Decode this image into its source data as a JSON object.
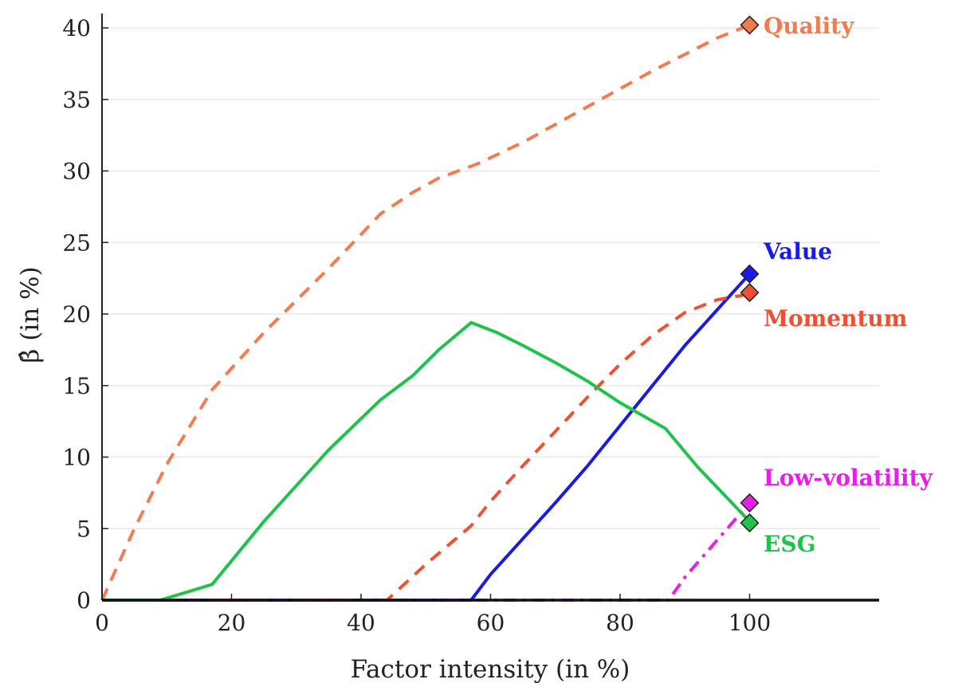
{
  "chart_data": {
    "type": "line",
    "title": "",
    "xlabel": "Factor intensity (in %)",
    "ylabel": "β̂ (in %)",
    "xlim": [
      0,
      120
    ],
    "ylim": [
      0,
      41
    ],
    "x_ticks": [
      0,
      20,
      40,
      60,
      80,
      100
    ],
    "y_ticks": [
      0,
      5,
      10,
      15,
      20,
      25,
      30,
      35,
      40
    ],
    "grid": "horizontal",
    "series": [
      {
        "name": "Quality",
        "color": "#f37b4f",
        "dash": "dashed",
        "x": [
          0,
          5,
          10,
          17,
          25,
          35,
          43,
          48,
          52,
          58,
          65,
          75,
          85,
          95,
          100
        ],
        "y": [
          0,
          5,
          9.5,
          14.7,
          18.7,
          23.2,
          27,
          28.5,
          29.5,
          30.5,
          32,
          34.5,
          37,
          39.3,
          40.2
        ]
      },
      {
        "name": "Value",
        "color": "#1a1ae6",
        "dash": "solid",
        "x": [
          0,
          57,
          60,
          65,
          70,
          75,
          80,
          85,
          90,
          95,
          100
        ],
        "y": [
          0,
          0,
          1.8,
          4.3,
          6.8,
          9.4,
          12.2,
          15,
          17.8,
          20.3,
          22.8
        ]
      },
      {
        "name": "Momentum",
        "color": "#f0502f",
        "dash": "dashed",
        "x": [
          0,
          44,
          50,
          57,
          60,
          65,
          70,
          75,
          80,
          85,
          90,
          95,
          100
        ],
        "y": [
          0,
          0,
          2.5,
          5.2,
          6.9,
          9.4,
          11.8,
          14.2,
          16.5,
          18.5,
          20.1,
          21,
          21.4
        ]
      },
      {
        "name": "Low-volatility",
        "color": "#e61ee6",
        "dash": "dashdot",
        "x": [
          0,
          87.5,
          90,
          95,
          100
        ],
        "y": [
          0,
          0,
          1.6,
          4.2,
          6.8
        ]
      },
      {
        "name": "ESG",
        "color": "#1fc24a",
        "dash": "solid",
        "x": [
          0,
          9,
          17,
          25,
          35,
          43,
          48,
          52,
          57,
          61,
          65,
          70,
          75,
          80,
          87,
          92,
          100
        ],
        "y": [
          0,
          0,
          1.1,
          5.5,
          10.5,
          14,
          15.7,
          17.5,
          19.4,
          18.7,
          17.8,
          16.6,
          15.3,
          13.8,
          12,
          9.3,
          5.5
        ]
      }
    ],
    "end_markers": [
      {
        "series": "Quality",
        "x": 100,
        "y": 40.2
      },
      {
        "series": "Value",
        "x": 100,
        "y": 22.8
      },
      {
        "series": "Momentum",
        "x": 100,
        "y": 21.5
      },
      {
        "series": "Low-volatility",
        "x": 100,
        "y": 6.8
      },
      {
        "series": "ESG",
        "x": 100,
        "y": 5.4
      }
    ],
    "annotations": [
      "Quality",
      "Value",
      "Momentum",
      "Low-volatility",
      "ESG"
    ]
  }
}
